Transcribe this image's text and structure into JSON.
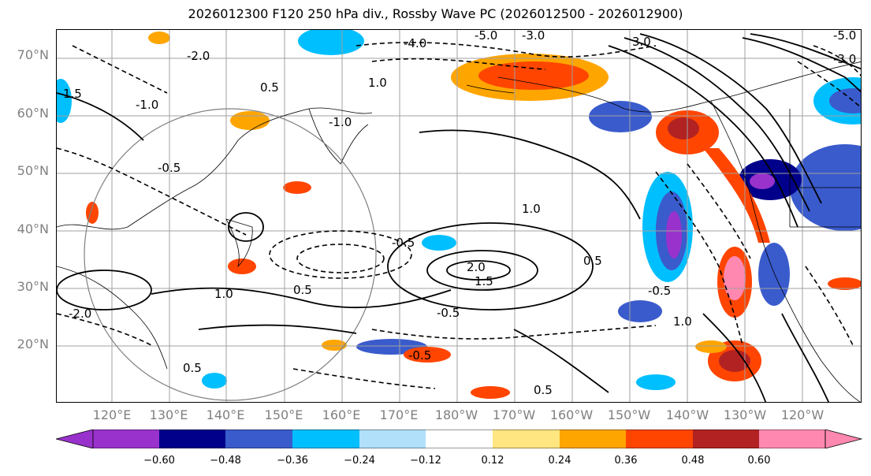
{
  "title": "2026012300 F120 250 hPa div., Rossby Wave PC (2026012500 - 2026012900)",
  "lat_labels": [
    "70°N",
    "60°N",
    "50°N",
    "40°N",
    "30°N",
    "20°N"
  ],
  "lon_labels": [
    "120°E",
    "130°E",
    "140°E",
    "150°E",
    "160°E",
    "170°E",
    "180°W",
    "170°W",
    "160°W",
    "150°W",
    "140°W",
    "130°W",
    "120°W"
  ],
  "contour_labels": [
    "-4.0",
    "-5.0",
    "-3.0",
    "3.0",
    "-5.0",
    "-3.0",
    "-2.0",
    "1.5",
    "1.0",
    "-1.0",
    "0.5",
    "-1.0",
    "-0.5",
    "1.0",
    "0.5",
    "2.0",
    "1.5",
    "-0.5",
    "0.5",
    "1.0",
    "-0.5",
    "1.0",
    "-0.5",
    "-0.5",
    "0.5",
    "-2.0",
    "0.5"
  ],
  "colorbar": {
    "colors": [
      "#9932cc",
      "#00008b",
      "#3a5bcc",
      "#00bfff",
      "#b0e0fa",
      "#ffffff",
      "#ffe680",
      "#ffa500",
      "#ff4500",
      "#b22222",
      "#ff88b0"
    ],
    "tick_labels": [
      "−0.60",
      "−0.48",
      "−0.36",
      "−0.24",
      "−0.12",
      "0.12",
      "0.24",
      "0.36",
      "0.48",
      "0.60"
    ]
  },
  "colors": {
    "gridline": "#a0a0a0",
    "circle": "#808080",
    "label": "#808080"
  }
}
